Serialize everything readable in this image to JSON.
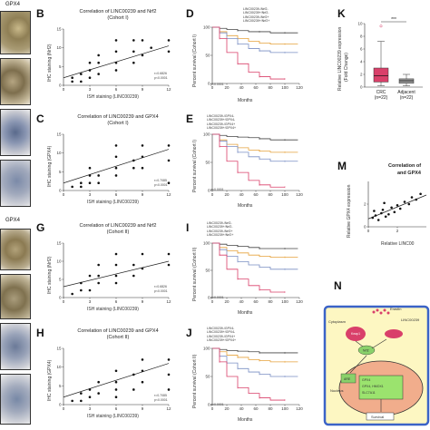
{
  "side_labels": {
    "top": "GPX4",
    "bottom": "GPX4"
  },
  "panels": {
    "B": {
      "letter": "B",
      "title": "Correlation of LINC00239 and Nrf2",
      "subtitle": "(Cohort I)",
      "ylabel": "IHC staining (Nrf2)",
      "xlabel": "ISH staining (LINC00239)",
      "stats": [
        "r=0.6826",
        "p<0.0001"
      ]
    },
    "C": {
      "letter": "C",
      "title": "Correlation of LINC00239 and GPX4",
      "subtitle": "(Cohort I)",
      "ylabel": "IHC staining (GPX4)",
      "xlabel": "ISH staining (LINC00239)",
      "stats": [
        "r=0.7085",
        "p<0.0001"
      ]
    },
    "G": {
      "letter": "G",
      "title": "Correlation of LINC00239 and Nrf2",
      "subtitle": "(Cohort II)",
      "ylabel": "IHC staining (Nrf2)",
      "xlabel": "ISH staining (LINC00239)",
      "stats": [
        "r=0.6826",
        "p<0.0001"
      ]
    },
    "H": {
      "letter": "H",
      "title": "Correlation of LINC00239 and GPX4",
      "subtitle": "(Cohort II)",
      "ylabel": "IHC staining (GPX4)",
      "xlabel": "ISH staining (LINC00239)",
      "stats": [
        "r=0.7085",
        "p<0.0001"
      ]
    },
    "D": {
      "letter": "D",
      "ylabel": "Percent survival (Cohort I)",
      "xlabel": "Months",
      "pval": "p<0.0001",
      "legend": [
        "LINC00239-/Nrf2-",
        "LINC00239+/Nrf2-",
        "LINC00239-/Nrf2+",
        "LINC00239+/Nrf2+"
      ]
    },
    "E": {
      "letter": "E",
      "ylabel": "Percent survival (Cohort I)",
      "xlabel": "Months",
      "pval": "p<0.0001",
      "legend": [
        "LINC00239-/GPX4-",
        "LINC00239+/GPX4-",
        "LINC00239-/GPX4+",
        "LINC00239+/GPX4+"
      ]
    },
    "I": {
      "letter": "I",
      "ylabel": "Percent survival (Cohort II)",
      "xlabel": "Months",
      "pval": "p<0.0001",
      "legend": [
        "LINC00239-/Nrf2-",
        "LINC00239+/Nrf2-",
        "LINC00239-/Nrf2+",
        "LINC00239+/Nrf2+"
      ]
    },
    "J": {
      "letter": "J",
      "ylabel": "Percent survival (Cohort II)",
      "xlabel": "Months",
      "pval": "p<0.0001",
      "legend": [
        "LINC00239-/GPX4-",
        "LINC00239+/GPX4-",
        "LINC00239-/GPX4+",
        "LINC00239+/GPX4+"
      ]
    },
    "K": {
      "letter": "K",
      "ylabel": "Relative LINC00239 expression",
      "ylabel2": "(Fold Change)",
      "sig": "***"
    },
    "M": {
      "letter": "M",
      "title": "Correlation of",
      "title2": "and GPX4",
      "ylabel": "Relative GPX4 expression",
      "xlabel": "Relative LINC00"
    },
    "N": {
      "letter": "N",
      "labels": {
        "erastin": "Erastin",
        "linc": "LINC00239",
        "cytoplasm": "Cytoplasm",
        "nucleus": "Nucleus",
        "nrf2": "Nrf2",
        "keap1": "Keap1",
        "are": "ARE",
        "box1": "GPX4",
        "box2": "GPX4, HMOX1",
        "box3": "SLC7A11",
        "survival": "Survival"
      }
    }
  },
  "chart_data": [
    {
      "type": "scatter",
      "panel": "B",
      "xlabel": "ISH staining (LINC00239)",
      "ylabel": "IHC staining (Nrf2)",
      "xlim": [
        0,
        12
      ],
      "ylim": [
        0,
        15
      ],
      "x_ticks": [
        0,
        3,
        6,
        9,
        12
      ],
      "y_ticks": [
        0,
        5,
        10,
        15
      ],
      "points": [
        [
          1,
          1
        ],
        [
          1,
          2
        ],
        [
          2,
          1
        ],
        [
          2,
          3
        ],
        [
          3,
          2
        ],
        [
          3,
          4
        ],
        [
          3,
          6
        ],
        [
          4,
          3
        ],
        [
          4,
          6
        ],
        [
          4,
          8
        ],
        [
          6,
          4
        ],
        [
          6,
          6
        ],
        [
          6,
          9
        ],
        [
          6,
          12
        ],
        [
          8,
          6
        ],
        [
          8,
          9
        ],
        [
          8,
          12
        ],
        [
          9,
          8
        ],
        [
          9,
          12
        ],
        [
          10,
          10
        ],
        [
          12,
          9
        ],
        [
          12,
          12
        ]
      ],
      "fit": [
        [
          0,
          2
        ],
        [
          12,
          10.5
        ]
      ],
      "stats": [
        "r=0.6826",
        "p<0.0001"
      ]
    },
    {
      "type": "scatter",
      "panel": "C",
      "xlabel": "ISH staining (LINC00239)",
      "ylabel": "IHC staining (GPX4)",
      "xlim": [
        0,
        12
      ],
      "ylim": [
        0,
        15
      ],
      "x_ticks": [
        0,
        3,
        6,
        9,
        12
      ],
      "y_ticks": [
        0,
        5,
        10,
        15
      ],
      "points": [
        [
          1,
          1
        ],
        [
          2,
          2
        ],
        [
          2,
          1
        ],
        [
          3,
          2
        ],
        [
          3,
          4
        ],
        [
          3,
          6
        ],
        [
          4,
          2
        ],
        [
          4,
          4
        ],
        [
          6,
          4
        ],
        [
          6,
          6
        ],
        [
          6,
          9
        ],
        [
          6,
          12
        ],
        [
          8,
          6
        ],
        [
          8,
          8
        ],
        [
          9,
          6
        ],
        [
          9,
          9
        ],
        [
          9,
          12
        ],
        [
          12,
          8
        ],
        [
          12,
          12
        ],
        [
          12,
          2
        ]
      ],
      "fit": [
        [
          0,
          2
        ],
        [
          12,
          11
        ]
      ],
      "stats": [
        "r=0.7085",
        "p<0.0001"
      ]
    },
    {
      "type": "scatter",
      "panel": "G",
      "xlabel": "ISH staining (LINC00239)",
      "ylabel": "IHC staining (Nrf2)",
      "xlim": [
        0,
        12
      ],
      "ylim": [
        0,
        15
      ],
      "x_ticks": [
        0,
        3,
        6,
        9,
        12
      ],
      "y_ticks": [
        0,
        5,
        10,
        15
      ],
      "points": [
        [
          1,
          1
        ],
        [
          2,
          2
        ],
        [
          2,
          4
        ],
        [
          3,
          2
        ],
        [
          3,
          6
        ],
        [
          4,
          4
        ],
        [
          4,
          6
        ],
        [
          6,
          4
        ],
        [
          6,
          6
        ],
        [
          6,
          9
        ],
        [
          6,
          12
        ],
        [
          8,
          6
        ],
        [
          8,
          9
        ],
        [
          9,
          12
        ],
        [
          9,
          8
        ],
        [
          12,
          9
        ],
        [
          12,
          12
        ],
        [
          4,
          9
        ]
      ],
      "fit": [
        [
          0,
          3
        ],
        [
          12,
          10
        ]
      ],
      "stats": [
        "r=0.6826",
        "p<0.0001"
      ]
    },
    {
      "type": "scatter",
      "panel": "H",
      "xlabel": "ISH staining (LINC00239)",
      "ylabel": "IHC staining (GPX4)",
      "xlim": [
        0,
        12
      ],
      "ylim": [
        0,
        15
      ],
      "x_ticks": [
        0,
        3,
        6,
        9,
        12
      ],
      "y_ticks": [
        0,
        5,
        10,
        15
      ],
      "points": [
        [
          1,
          1
        ],
        [
          2,
          1
        ],
        [
          2,
          3
        ],
        [
          3,
          2
        ],
        [
          3,
          4
        ],
        [
          4,
          3
        ],
        [
          4,
          6
        ],
        [
          6,
          2
        ],
        [
          6,
          4
        ],
        [
          6,
          6
        ],
        [
          6,
          9
        ],
        [
          8,
          4
        ],
        [
          8,
          8
        ],
        [
          9,
          6
        ],
        [
          9,
          9
        ],
        [
          9,
          12
        ],
        [
          12,
          8
        ],
        [
          12,
          12
        ],
        [
          12,
          4
        ]
      ],
      "fit": [
        [
          0,
          2
        ],
        [
          12,
          11
        ]
      ],
      "stats": [
        "r=0.7085",
        "p<0.0001"
      ]
    },
    {
      "type": "line",
      "panel": "D",
      "xlabel": "Months",
      "xlim": [
        0,
        120
      ],
      "ylim": [
        0,
        100
      ],
      "x_ticks": [
        0,
        20,
        40,
        60,
        80,
        100,
        120
      ],
      "y_ticks": [
        0,
        50,
        100
      ],
      "series": [
        {
          "name": "LINC00239-/Nrf2-",
          "color": "#444444",
          "x": [
            0,
            10,
            20,
            35,
            50,
            65,
            80,
            100,
            118
          ],
          "y": [
            100,
            98,
            96,
            94,
            92,
            92,
            90,
            90,
            90
          ]
        },
        {
          "name": "LINC00239+/Nrf2-",
          "color": "#e6a23c",
          "x": [
            0,
            10,
            20,
            35,
            50,
            65,
            80,
            100,
            118
          ],
          "y": [
            100,
            92,
            85,
            80,
            75,
            72,
            70,
            70,
            70
          ]
        },
        {
          "name": "LINC00239-/Nrf2+",
          "color": "#7a8fc4",
          "x": [
            0,
            10,
            20,
            35,
            50,
            65,
            80,
            100,
            118
          ],
          "y": [
            100,
            90,
            80,
            70,
            62,
            58,
            55,
            55,
            55
          ]
        },
        {
          "name": "LINC00239+/Nrf2+",
          "color": "#d9406a",
          "x": [
            0,
            10,
            20,
            35,
            50,
            65,
            80,
            100
          ],
          "y": [
            100,
            80,
            55,
            35,
            20,
            12,
            8,
            8
          ]
        }
      ]
    },
    {
      "type": "line",
      "panel": "E",
      "xlabel": "Months",
      "xlim": [
        0,
        120
      ],
      "ylim": [
        0,
        100
      ],
      "x_ticks": [
        0,
        20,
        40,
        60,
        80,
        100,
        120
      ],
      "y_ticks": [
        0,
        50,
        100
      ],
      "series": [
        {
          "name": "LINC00239-/GPX4-",
          "color": "#444444",
          "x": [
            0,
            10,
            20,
            35,
            50,
            65,
            80,
            100,
            118
          ],
          "y": [
            100,
            98,
            96,
            95,
            94,
            92,
            90,
            90,
            90
          ]
        },
        {
          "name": "LINC00239+/GPX4-",
          "color": "#e6a23c",
          "x": [
            0,
            10,
            20,
            35,
            50,
            65,
            80,
            100,
            118
          ],
          "y": [
            100,
            90,
            82,
            76,
            72,
            70,
            68,
            68,
            68
          ]
        },
        {
          "name": "LINC00239-/GPX4+",
          "color": "#7a8fc4",
          "x": [
            0,
            10,
            20,
            35,
            50,
            65,
            80,
            100,
            118
          ],
          "y": [
            100,
            88,
            78,
            68,
            60,
            56,
            52,
            52,
            52
          ]
        },
        {
          "name": "LINC00239+/GPX4+",
          "color": "#d9406a",
          "x": [
            0,
            10,
            20,
            35,
            50,
            65,
            80,
            100
          ],
          "y": [
            100,
            78,
            52,
            32,
            18,
            10,
            6,
            6
          ]
        }
      ]
    },
    {
      "type": "line",
      "panel": "I",
      "xlabel": "Months",
      "xlim": [
        0,
        120
      ],
      "ylim": [
        0,
        100
      ],
      "x_ticks": [
        0,
        20,
        40,
        60,
        80,
        100,
        120
      ],
      "y_ticks": [
        0,
        50,
        100
      ],
      "series": [
        {
          "name": "LINC00239-/Nrf2-",
          "color": "#444444",
          "x": [
            0,
            10,
            20,
            35,
            50,
            65,
            80,
            100,
            118
          ],
          "y": [
            100,
            98,
            96,
            94,
            92,
            90,
            90,
            90,
            90
          ]
        },
        {
          "name": "LINC00239+/Nrf2-",
          "color": "#e6a23c",
          "x": [
            0,
            10,
            20,
            35,
            50,
            65,
            80,
            100,
            118
          ],
          "y": [
            100,
            92,
            86,
            82,
            78,
            76,
            74,
            74,
            74
          ]
        },
        {
          "name": "LINC00239-/Nrf2+",
          "color": "#7a8fc4",
          "x": [
            0,
            10,
            20,
            35,
            50,
            65,
            80,
            100,
            118
          ],
          "y": [
            100,
            88,
            76,
            66,
            60,
            56,
            52,
            52,
            52
          ]
        },
        {
          "name": "LINC00239+/Nrf2+",
          "color": "#d9406a",
          "x": [
            0,
            10,
            20,
            35,
            50,
            65,
            80,
            100
          ],
          "y": [
            100,
            78,
            52,
            34,
            22,
            14,
            10,
            10
          ]
        }
      ]
    },
    {
      "type": "line",
      "panel": "J",
      "xlabel": "Months",
      "xlim": [
        0,
        120
      ],
      "ylim": [
        0,
        100
      ],
      "x_ticks": [
        0,
        20,
        40,
        60,
        80,
        100,
        120
      ],
      "y_ticks": [
        0,
        50,
        100
      ],
      "series": [
        {
          "name": "LINC00239-/GPX4-",
          "color": "#444444",
          "x": [
            0,
            10,
            20,
            35,
            50,
            65,
            80,
            100,
            118
          ],
          "y": [
            100,
            98,
            96,
            95,
            94,
            92,
            92,
            92,
            92
          ]
        },
        {
          "name": "LINC00239+/GPX4-",
          "color": "#e6a23c",
          "x": [
            0,
            10,
            20,
            35,
            50,
            65,
            80,
            100,
            118
          ],
          "y": [
            100,
            94,
            88,
            84,
            80,
            78,
            76,
            76,
            76
          ]
        },
        {
          "name": "LINC00239-/GPX4+",
          "color": "#7a8fc4",
          "x": [
            0,
            10,
            20,
            35,
            50,
            65,
            80,
            100,
            118
          ],
          "y": [
            100,
            86,
            74,
            64,
            58,
            54,
            50,
            50,
            50
          ]
        },
        {
          "name": "LINC00239+/GPX4+",
          "color": "#d9406a",
          "x": [
            0,
            10,
            20,
            35,
            50,
            65,
            80,
            100
          ],
          "y": [
            100,
            76,
            50,
            30,
            20,
            12,
            8,
            8
          ]
        }
      ]
    },
    {
      "type": "box",
      "panel": "K",
      "ylim": [
        0,
        10
      ],
      "y_ticks": [
        0,
        2,
        4,
        6,
        8,
        10
      ],
      "categories": [
        "CRC\n(n=22)",
        "Adjacent\n(n=22)"
      ],
      "boxes": [
        {
          "name": "CRC",
          "n": "(n=22)",
          "color": "#d9406a",
          "min": 0.2,
          "q1": 0.8,
          "median": 1.8,
          "q3": 3.0,
          "max": 7.2
        },
        {
          "name": "Adjacent",
          "n": "(n=22)",
          "color": "#999999",
          "min": 0.2,
          "q1": 0.6,
          "median": 1.0,
          "q3": 1.3,
          "max": 2.0
        }
      ],
      "outliers": [
        9.6
      ],
      "sig": "***"
    },
    {
      "type": "scatter",
      "panel": "M",
      "xlim": [
        0,
        4
      ],
      "ylim": [
        0,
        4
      ],
      "x_ticks": [
        0,
        2
      ],
      "y_ticks": [
        0,
        2
      ],
      "points": [
        [
          0.3,
          0.8
        ],
        [
          0.5,
          1.0
        ],
        [
          0.7,
          0.6
        ],
        [
          0.9,
          1.2
        ],
        [
          1.0,
          1.5
        ],
        [
          1.2,
          0.9
        ],
        [
          1.4,
          1.1
        ],
        [
          1.6,
          1.7
        ],
        [
          1.8,
          1.3
        ],
        [
          2.0,
          1.9
        ],
        [
          2.2,
          1.6
        ],
        [
          2.5,
          2.2
        ],
        [
          2.8,
          2.0
        ],
        [
          3.0,
          2.6
        ],
        [
          3.3,
          2.4
        ],
        [
          3.6,
          2.9
        ],
        [
          0.4,
          1.4
        ],
        [
          1.1,
          2.1
        ]
      ],
      "fit": [
        [
          0,
          0.7
        ],
        [
          4,
          2.8
        ]
      ]
    }
  ]
}
